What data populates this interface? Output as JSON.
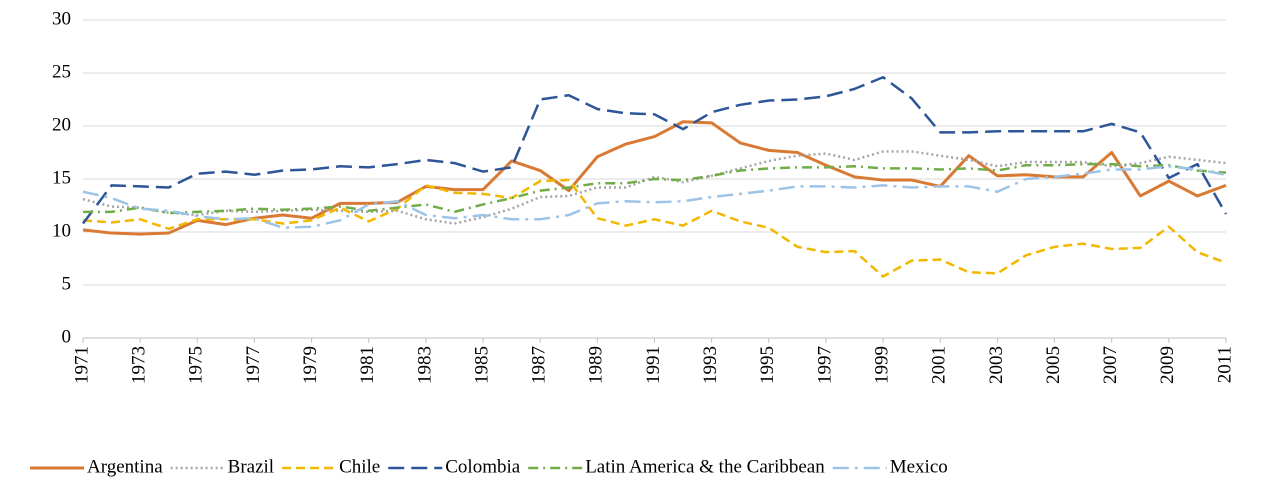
{
  "chart_data": {
    "type": "line",
    "x": [
      1971,
      1972,
      1973,
      1974,
      1975,
      1976,
      1977,
      1978,
      1979,
      1980,
      1981,
      1982,
      1983,
      1984,
      1985,
      1986,
      1987,
      1988,
      1989,
      1990,
      1991,
      1992,
      1993,
      1994,
      1995,
      1996,
      1997,
      1998,
      1999,
      2000,
      2001,
      2002,
      2003,
      2004,
      2005,
      2006,
      2007,
      2008,
      2009,
      2010,
      2011
    ],
    "xlim": [
      1971,
      2011
    ],
    "xticks": [
      1971,
      1973,
      1975,
      1977,
      1979,
      1981,
      1983,
      1985,
      1987,
      1989,
      1991,
      1993,
      1995,
      1997,
      1999,
      2001,
      2003,
      2005,
      2007,
      2009,
      2011
    ],
    "ylim": [
      0,
      30
    ],
    "yticks": [
      0,
      5,
      10,
      15,
      20,
      25,
      30
    ],
    "grid": true,
    "legend": "bottom",
    "series": [
      {
        "name": "Argentina",
        "color": "#D97A34",
        "style": "solid",
        "values": [
          10.2,
          9.9,
          9.8,
          9.9,
          11.1,
          10.7,
          11.3,
          11.6,
          11.3,
          12.7,
          12.7,
          12.8,
          14.3,
          14.0,
          14.0,
          16.7,
          15.8,
          13.9,
          17.1,
          18.3,
          19.0,
          20.4,
          20.3,
          18.4,
          17.7,
          17.5,
          16.3,
          15.2,
          14.9,
          14.9,
          14.3,
          17.2,
          15.3,
          15.4,
          15.2,
          15.2,
          17.5,
          13.4,
          14.8,
          13.4,
          14.4
        ]
      },
      {
        "name": "Brazil",
        "color": "#A5A5A5",
        "style": "dotted",
        "values": [
          13.1,
          12.4,
          12.3,
          11.8,
          11.6,
          12.0,
          11.9,
          12.0,
          12.1,
          12.0,
          11.9,
          12.0,
          11.2,
          10.8,
          11.4,
          12.2,
          13.3,
          13.4,
          14.2,
          14.2,
          15.2,
          14.7,
          15.3,
          16.0,
          16.7,
          17.2,
          17.4,
          16.8,
          17.6,
          17.6,
          17.2,
          16.8,
          16.2,
          16.6,
          16.6,
          16.6,
          16.2,
          16.5,
          17.1,
          16.8,
          16.5
        ]
      },
      {
        "name": "Chile",
        "color": "#F2B800",
        "style": "dashed",
        "values": [
          11.1,
          10.9,
          11.2,
          10.3,
          11.2,
          11.2,
          11.2,
          10.8,
          11.1,
          12.3,
          11.0,
          12.2,
          14.4,
          13.7,
          13.6,
          13.2,
          14.8,
          14.9,
          11.3,
          10.6,
          11.2,
          10.6,
          12.0,
          11.0,
          10.4,
          8.6,
          8.1,
          8.2,
          5.8,
          7.3,
          7.4,
          6.2,
          6.1,
          7.8,
          8.6,
          8.9,
          8.4,
          8.5,
          10.5,
          8.1,
          7.1
        ]
      },
      {
        "name": "Colombia",
        "color": "#2E5597",
        "style": "longdash",
        "values": [
          10.8,
          14.4,
          14.3,
          14.2,
          15.5,
          15.7,
          15.4,
          15.8,
          15.9,
          16.2,
          16.1,
          16.4,
          16.8,
          16.5,
          15.7,
          16.1,
          22.5,
          22.9,
          21.6,
          21.2,
          21.1,
          19.7,
          21.3,
          22.0,
          22.4,
          22.5,
          22.8,
          23.5,
          24.6,
          22.6,
          19.4,
          19.4,
          19.5,
          19.5,
          19.5,
          19.5,
          20.2,
          19.4,
          15.1,
          16.4,
          11.7
        ]
      },
      {
        "name": "Latin America & the Caribbean",
        "color": "#70AD47",
        "style": "dashdot",
        "values": [
          11.9,
          11.9,
          12.3,
          11.8,
          11.9,
          12.0,
          12.2,
          12.1,
          12.2,
          12.4,
          12.0,
          12.3,
          12.6,
          11.9,
          12.6,
          13.2,
          13.9,
          14.2,
          14.6,
          14.6,
          15.0,
          14.9,
          15.3,
          15.8,
          16.0,
          16.1,
          16.1,
          16.2,
          16.0,
          16.0,
          15.9,
          16.0,
          15.8,
          16.3,
          16.3,
          16.4,
          16.4,
          16.2,
          16.3,
          15.8,
          15.6
        ]
      },
      {
        "name": "Mexico",
        "color": "#9DC3E6",
        "style": "longdashdot",
        "values": [
          13.8,
          13.2,
          12.2,
          12.0,
          11.5,
          11.2,
          11.3,
          10.4,
          10.5,
          11.1,
          12.6,
          12.9,
          11.6,
          11.3,
          11.6,
          11.2,
          11.2,
          11.6,
          12.7,
          12.9,
          12.8,
          12.9,
          13.3,
          13.6,
          13.9,
          14.3,
          14.3,
          14.2,
          14.4,
          14.2,
          14.3,
          14.3,
          13.8,
          15.0,
          15.2,
          15.5,
          15.9,
          15.9,
          16.2,
          15.9,
          15.4
        ]
      }
    ]
  }
}
